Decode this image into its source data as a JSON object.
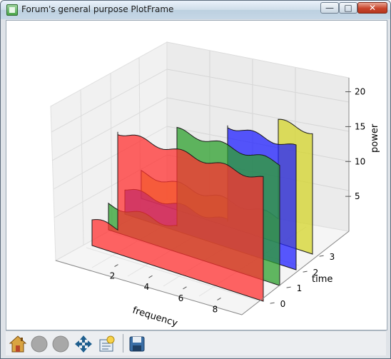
{
  "window": {
    "title": "Forum's general purpose PlotFrame"
  },
  "window_controls": {
    "minimize": "—",
    "maximize": "□",
    "close": "✕"
  },
  "toolbar": {
    "buttons": [
      {
        "icon": "home-icon"
      },
      {
        "icon": "back-icon"
      },
      {
        "icon": "forward-icon"
      },
      {
        "icon": "pan-icon"
      },
      {
        "icon": "zoom-icon"
      },
      {
        "icon": "save-icon"
      }
    ]
  },
  "colors": {
    "red": "#ff3030",
    "green": "#2ea02e",
    "blue": "#2020ff",
    "yellow": "#d4d42a"
  },
  "chart_data": {
    "type": "area",
    "xlabel": "frequency",
    "ylabel": "time",
    "zlabel": "power",
    "x_ticks": [
      "2",
      "4",
      "6",
      "8"
    ],
    "y_ticks": [
      "0",
      "1",
      "2",
      "3"
    ],
    "z_ticks": [
      "5",
      "10",
      "15",
      "20"
    ],
    "xlim": [
      0,
      10
    ],
    "ylim": [
      -0.5,
      3.5
    ],
    "zlim": [
      0,
      22
    ],
    "series": [
      {
        "time": 0,
        "color": "#ff3030",
        "x": [
          0,
          1.5,
          1.5,
          10
        ],
        "power": [
          4,
          4,
          19,
          19
        ]
      },
      {
        "time": 1,
        "color": "#2ea02e",
        "x": [
          0,
          4,
          4,
          10
        ],
        "power": [
          4,
          4,
          19,
          19
        ]
      },
      {
        "time": 2,
        "color": "#2020ff",
        "x": [
          0,
          6,
          6,
          10
        ],
        "power": [
          4,
          4,
          19,
          19
        ]
      },
      {
        "time": 3,
        "color": "#d4d42a",
        "x": [
          0,
          8,
          8,
          10
        ],
        "power": [
          4,
          4,
          19,
          19
        ]
      }
    ]
  }
}
